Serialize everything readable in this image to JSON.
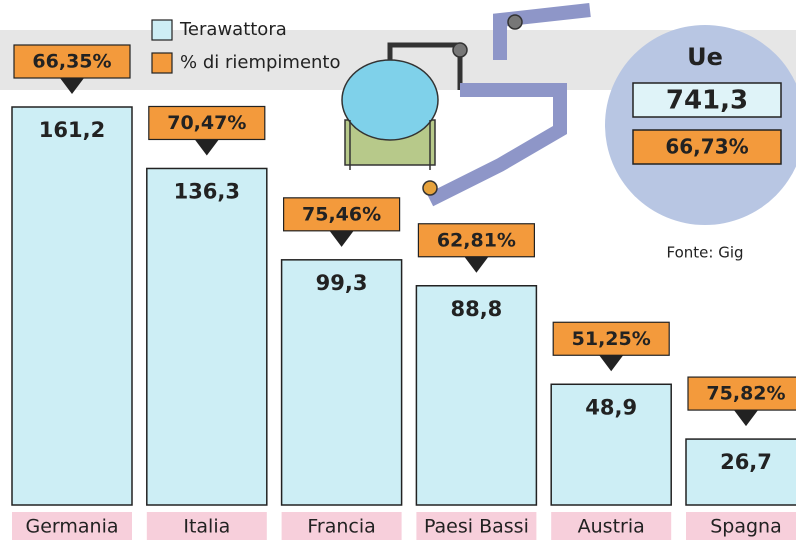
{
  "chart_data": {
    "type": "bar",
    "categories": [
      "Germania",
      "Italia",
      "Francia",
      "Paesi Bassi",
      "Austria",
      "Spagna"
    ],
    "series": [
      {
        "name": "Terawattora",
        "color": "#cdeef5",
        "values": [
          161.2,
          136.3,
          99.3,
          88.8,
          48.9,
          26.7
        ],
        "value_labels": [
          "161,2",
          "136,3",
          "99,3",
          "88,8",
          "48,9",
          "26,7"
        ]
      },
      {
        "name": "% di riempimento",
        "color": "#f39a3c",
        "values": [
          66.35,
          70.47,
          75.46,
          62.81,
          51.25,
          75.82
        ],
        "value_labels": [
          "66,35%",
          "70,47%",
          "75,46%",
          "62,81%",
          "51,25%",
          "75,82%"
        ]
      }
    ],
    "summary": {
      "title": "Ue",
      "total": 741.3,
      "total_label": "741,3",
      "fill": 66.73,
      "fill_label": "66,73%"
    },
    "source": "Fonte: Gig"
  }
}
